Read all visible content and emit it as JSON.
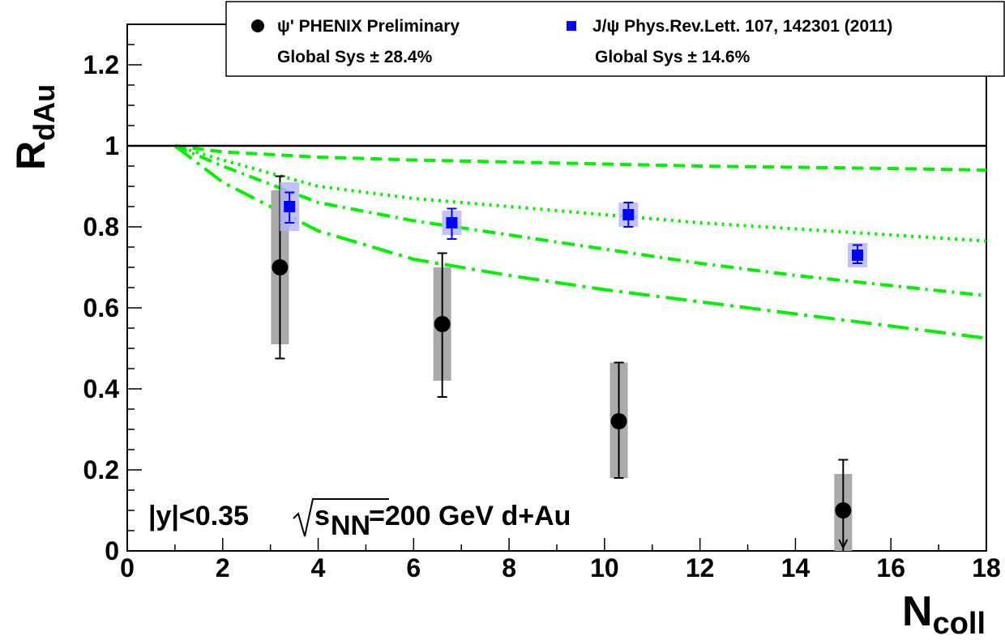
{
  "chart_data": {
    "type": "scatter",
    "xlabel": {
      "main": "N",
      "sub": "coll"
    },
    "ylabel": {
      "main": "R",
      "sub": "dAu"
    },
    "xlim": [
      0,
      18
    ],
    "ylim": [
      0,
      1.3
    ],
    "x_ticks": [
      "0",
      "2",
      "4",
      "6",
      "8",
      "10",
      "12",
      "14",
      "16",
      "18"
    ],
    "y_ticks": [
      "0",
      "0.2",
      "0.4",
      "0.6",
      "0.8",
      "1",
      "1.2"
    ],
    "reference_line": 1,
    "legend": {
      "placement": "top-right",
      "entries": [
        {
          "label": "ψ' PHENIX Preliminary",
          "sys": "Global Sys ± 28.4%"
        },
        {
          "label": "J/ψ Phys.Rev.Lett. 107, 142301 (2011)",
          "sys": "Global Sys ± 14.6%"
        }
      ]
    },
    "annotation": {
      "pre": "|y|<0.35 ",
      "s": "s",
      "sub": "NN",
      "post": "=200 GeV d+Au"
    },
    "series": [
      {
        "name": "ψ' PHENIX Preliminary",
        "color": "#000000",
        "marker": "circle",
        "points": [
          {
            "x": 3.2,
            "y": 0.7,
            "stat": [
              0.475,
              0.925
            ],
            "sys": [
              0.51,
              0.89
            ]
          },
          {
            "x": 6.6,
            "y": 0.56,
            "stat": [
              0.38,
              0.735
            ],
            "sys": [
              0.42,
              0.7
            ]
          },
          {
            "x": 10.3,
            "y": 0.32,
            "stat": [
              0.18,
              0.465
            ],
            "sys": [
              0.18,
              0.465
            ]
          },
          {
            "x": 15.0,
            "y": 0.1,
            "stat": [
              0.0,
              0.225
            ],
            "sys": [
              0.0,
              0.19
            ],
            "upper_limit": true
          }
        ]
      },
      {
        "name": "J/ψ Phys.Rev.Lett. 107, 142301 (2011)",
        "color": "#0000ff",
        "marker": "square",
        "points": [
          {
            "x": 3.4,
            "y": 0.85,
            "stat": [
              0.81,
              0.885
            ],
            "sys": [
              0.79,
              0.91
            ]
          },
          {
            "x": 6.8,
            "y": 0.81,
            "stat": [
              0.77,
              0.845
            ],
            "sys": [
              0.78,
              0.84
            ]
          },
          {
            "x": 10.5,
            "y": 0.83,
            "stat": [
              0.8,
              0.86
            ],
            "sys": [
              0.8,
              0.86
            ]
          },
          {
            "x": 15.3,
            "y": 0.73,
            "stat": [
              0.71,
              0.755
            ],
            "sys": [
              0.7,
              0.76
            ]
          }
        ]
      }
    ],
    "curves": [
      {
        "style": "dashed",
        "color": "#00ee00",
        "x": [
          1,
          2,
          4,
          6,
          8,
          10,
          12,
          14,
          16,
          18
        ],
        "y": [
          1.0,
          0.985,
          0.972,
          0.965,
          0.96,
          0.955,
          0.95,
          0.947,
          0.944,
          0.94
        ]
      },
      {
        "style": "dotted",
        "color": "#00ee00",
        "x": [
          1,
          2,
          4,
          6,
          8,
          10,
          12,
          14,
          16,
          18
        ],
        "y": [
          1.0,
          0.965,
          0.9,
          0.87,
          0.85,
          0.83,
          0.81,
          0.795,
          0.78,
          0.765
        ]
      },
      {
        "style": "dashdot",
        "color": "#00ee00",
        "x": [
          1,
          2,
          4,
          6,
          8,
          10,
          12,
          14,
          16,
          18
        ],
        "y": [
          1.0,
          0.95,
          0.86,
          0.815,
          0.78,
          0.745,
          0.71,
          0.68,
          0.655,
          0.63
        ]
      },
      {
        "style": "longdashdot",
        "color": "#00ee00",
        "x": [
          1,
          2,
          4,
          6,
          8,
          10,
          12,
          14,
          16,
          18
        ],
        "y": [
          1.0,
          0.91,
          0.79,
          0.72,
          0.68,
          0.645,
          0.615,
          0.585,
          0.555,
          0.525
        ]
      }
    ]
  }
}
